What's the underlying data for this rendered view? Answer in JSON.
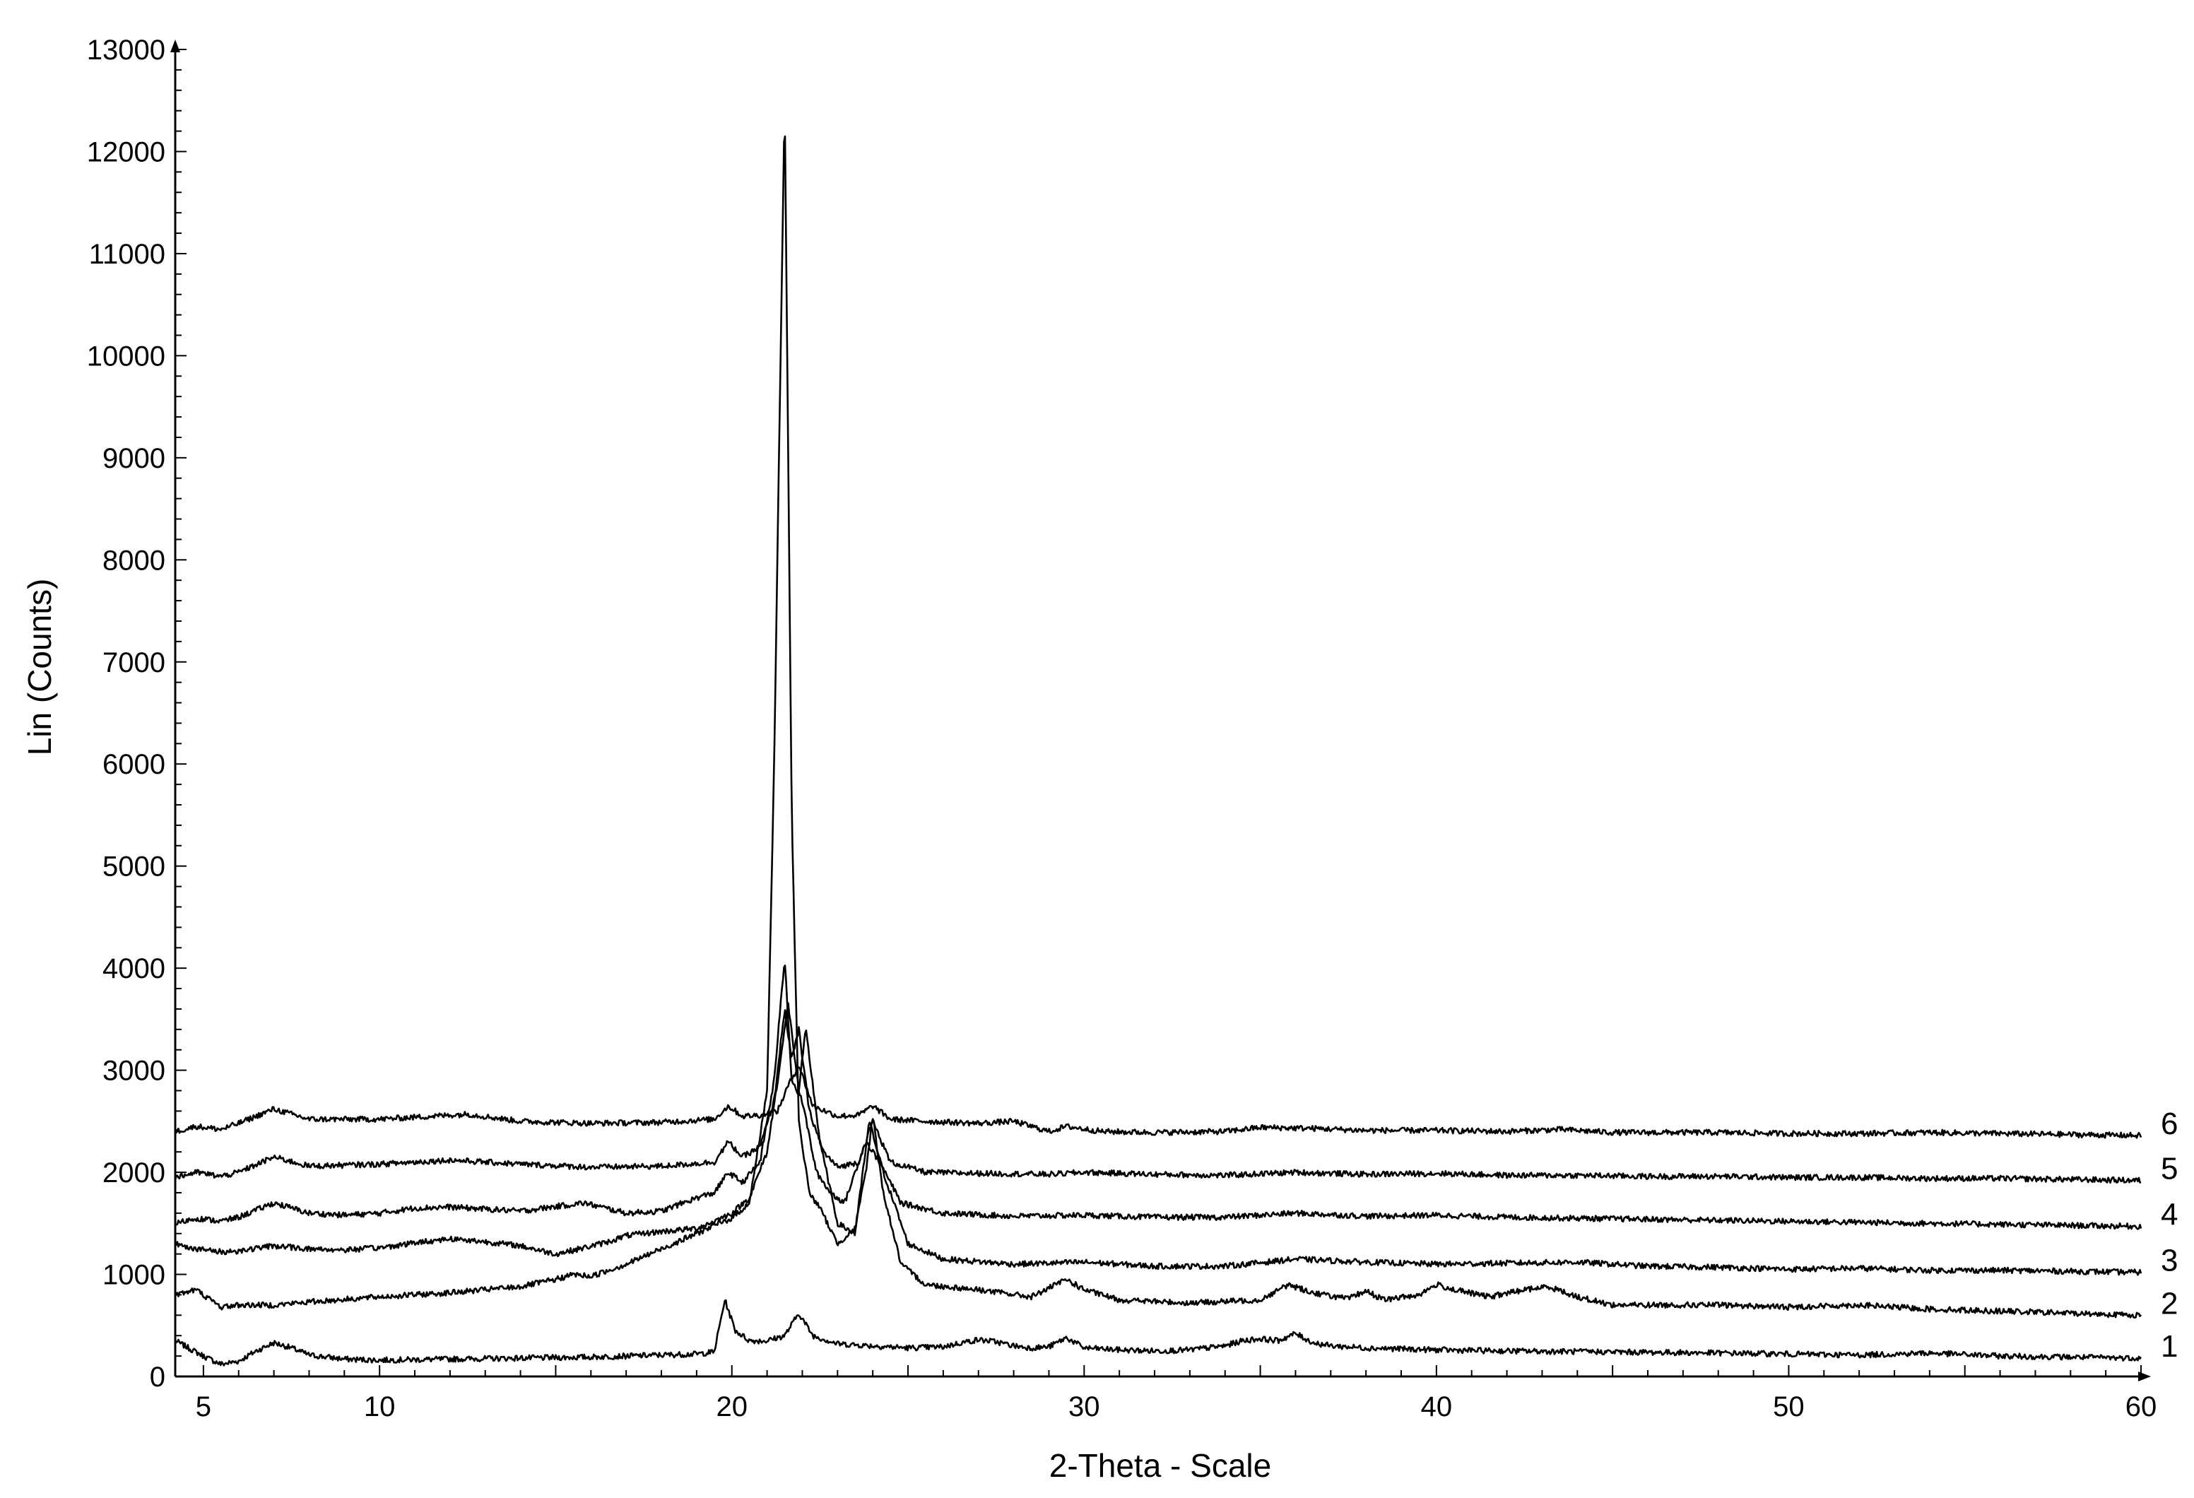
{
  "chart_data": {
    "type": "line",
    "xlabel": "2-Theta - Scale",
    "ylabel": "Lin (Counts)",
    "xlim": [
      4.2,
      60
    ],
    "ylim": [
      0,
      13000
    ],
    "x_ticks": [
      5,
      10,
      20,
      30,
      40,
      50,
      60
    ],
    "y_ticks": [
      0,
      1000,
      2000,
      3000,
      4000,
      5000,
      6000,
      7000,
      8000,
      9000,
      10000,
      11000,
      12000,
      13000
    ],
    "grid": false,
    "series": [
      {
        "name": "1",
        "x": [
          4.2,
          5.0,
          5.5,
          6.0,
          6.5,
          7.0,
          7.5,
          8.0,
          9.0,
          10.0,
          12.0,
          14.0,
          16.0,
          18.0,
          19.0,
          19.5,
          19.8,
          20.1,
          20.5,
          21.0,
          21.5,
          21.9,
          22.3,
          23.0,
          24.0,
          25.0,
          26.0,
          26.5,
          27.0,
          27.5,
          28.0,
          28.5,
          29.0,
          29.5,
          30.0,
          31.0,
          32.0,
          33.0,
          34.0,
          34.5,
          35.0,
          35.5,
          36.0,
          36.5,
          37.0,
          38.0,
          40.0,
          42.0,
          45.0,
          48.0,
          50.0,
          52.0,
          54.0,
          56.0,
          58.0,
          60.0
        ],
        "y": [
          350,
          200,
          120,
          150,
          250,
          330,
          280,
          210,
          170,
          160,
          170,
          180,
          190,
          210,
          220,
          240,
          750,
          450,
          350,
          350,
          400,
          620,
          400,
          320,
          300,
          280,
          290,
          330,
          360,
          340,
          300,
          280,
          290,
          380,
          280,
          260,
          250,
          260,
          300,
          350,
          370,
          350,
          420,
          330,
          300,
          280,
          260,
          250,
          240,
          230,
          220,
          210,
          230,
          200,
          190,
          180
        ]
      },
      {
        "name": "2",
        "x": [
          4.2,
          4.8,
          5.2,
          5.5,
          6.0,
          7.0,
          8.0,
          10.0,
          12.0,
          14.0,
          15.0,
          15.5,
          16.0,
          17.0,
          18.0,
          19.0,
          19.5,
          20.0,
          20.5,
          21.0,
          21.2,
          21.5,
          21.7,
          21.9,
          22.2,
          22.5,
          23.0,
          23.5,
          23.8,
          24.0,
          24.3,
          24.8,
          25.5,
          27.0,
          28.5,
          29.5,
          30.0,
          31.0,
          33.0,
          35.0,
          35.8,
          36.5,
          37.5,
          38.0,
          38.5,
          39.5,
          40.0,
          40.5,
          41.5,
          42.5,
          43.2,
          44.0,
          45.0,
          48.0,
          50.0,
          52.0,
          54.0,
          56.0,
          58.0,
          60.0
        ],
        "y": [
          800,
          850,
          750,
          680,
          700,
          700,
          730,
          780,
          820,
          880,
          950,
          1000,
          980,
          1100,
          1250,
          1400,
          1480,
          1550,
          1700,
          2800,
          6000,
          12500,
          5500,
          2500,
          1800,
          1650,
          1300,
          1450,
          2000,
          2550,
          1800,
          1100,
          900,
          850,
          780,
          950,
          850,
          750,
          720,
          750,
          900,
          820,
          760,
          840,
          750,
          800,
          900,
          850,
          780,
          850,
          880,
          780,
          700,
          700,
          680,
          700,
          660,
          640,
          620,
          600
        ]
      },
      {
        "name": "3",
        "x": [
          4.2,
          4.8,
          5.5,
          6.0,
          7.0,
          8.0,
          9.0,
          10.0,
          11.0,
          12.0,
          13.0,
          14.0,
          15.0,
          15.8,
          16.5,
          17.0,
          18.0,
          19.0,
          19.5,
          20.0,
          20.5,
          21.0,
          21.3,
          21.6,
          21.9,
          22.1,
          22.5,
          23.0,
          23.5,
          23.9,
          24.3,
          25.0,
          26.0,
          28.0,
          30.0,
          32.0,
          34.0,
          36.0,
          38.0,
          40.0,
          42.0,
          44.0,
          46.0,
          48.0,
          50.0,
          52.0,
          54.0,
          56.0,
          58.0,
          60.0
        ],
        "y": [
          1300,
          1250,
          1220,
          1230,
          1280,
          1250,
          1240,
          1260,
          1310,
          1350,
          1320,
          1280,
          1200,
          1260,
          1320,
          1380,
          1420,
          1450,
          1520,
          1600,
          1750,
          2200,
          2900,
          3650,
          2800,
          3400,
          2300,
          1500,
          1400,
          2500,
          2000,
          1300,
          1150,
          1100,
          1120,
          1080,
          1080,
          1150,
          1120,
          1100,
          1110,
          1120,
          1080,
          1070,
          1050,
          1060,
          1040,
          1040,
          1030,
          1020
        ]
      },
      {
        "name": "4",
        "x": [
          4.2,
          4.8,
          5.5,
          6.0,
          7.0,
          8.0,
          9.0,
          10.0,
          11.0,
          12.0,
          14.0,
          15.8,
          17.0,
          18.0,
          19.0,
          19.5,
          19.9,
          20.3,
          20.8,
          21.2,
          21.5,
          21.7,
          22.0,
          22.4,
          22.8,
          23.2,
          23.8,
          24.2,
          24.8,
          26.0,
          28.0,
          30.0,
          32.0,
          34.0,
          36.0,
          38.0,
          40.0,
          42.0,
          44.0,
          46.0,
          48.0,
          50.0,
          52.0,
          54.0,
          56.0,
          58.0,
          60.0
        ],
        "y": [
          1500,
          1550,
          1520,
          1560,
          1700,
          1600,
          1580,
          1600,
          1650,
          1660,
          1620,
          1700,
          1600,
          1620,
          1750,
          1800,
          2000,
          1900,
          2100,
          2900,
          4100,
          2900,
          2700,
          2000,
          1800,
          1700,
          2300,
          2100,
          1700,
          1600,
          1570,
          1580,
          1560,
          1560,
          1600,
          1570,
          1580,
          1560,
          1550,
          1540,
          1530,
          1520,
          1510,
          1500,
          1490,
          1480,
          1470
        ]
      },
      {
        "name": "5",
        "x": [
          4.2,
          4.8,
          5.5,
          6.0,
          7.0,
          8.0,
          10.0,
          12.0,
          14.0,
          16.0,
          18.0,
          19.5,
          19.9,
          20.3,
          20.8,
          21.2,
          21.5,
          21.7,
          21.9,
          22.2,
          22.6,
          23.0,
          23.6,
          24.0,
          24.5,
          25.5,
          27.0,
          29.0,
          30.0,
          32.0,
          34.0,
          36.0,
          38.0,
          40.0,
          42.0,
          44.0,
          46.0,
          48.0,
          50.0,
          52.0,
          54.0,
          56.0,
          58.0,
          60.0
        ],
        "y": [
          1950,
          2000,
          1960,
          2000,
          2150,
          2060,
          2080,
          2120,
          2080,
          2050,
          2060,
          2100,
          2300,
          2150,
          2250,
          2700,
          3600,
          3100,
          3400,
          2600,
          2200,
          2050,
          2100,
          2500,
          2100,
          2000,
          1990,
          1980,
          2000,
          1980,
          1970,
          2000,
          1980,
          1990,
          1970,
          1970,
          1960,
          1960,
          1950,
          1950,
          1940,
          1940,
          1930,
          1920
        ]
      },
      {
        "name": "6",
        "x": [
          4.2,
          4.8,
          5.5,
          6.0,
          7.0,
          8.0,
          10.0,
          12.5,
          14.0,
          16.0,
          18.0,
          19.5,
          19.9,
          20.3,
          20.8,
          21.3,
          21.6,
          21.9,
          22.3,
          23.0,
          23.6,
          24.0,
          24.5,
          25.5,
          27.0,
          28.0,
          29.0,
          29.5,
          30.5,
          32.0,
          34.0,
          35.0,
          36.5,
          38.0,
          40.0,
          42.0,
          43.5,
          45.0,
          48.0,
          50.0,
          52.0,
          54.0,
          56.0,
          58.0,
          60.0
        ],
        "y": [
          2400,
          2450,
          2420,
          2480,
          2620,
          2520,
          2520,
          2570,
          2500,
          2480,
          2490,
          2520,
          2650,
          2550,
          2560,
          2600,
          2850,
          3050,
          2650,
          2550,
          2560,
          2650,
          2520,
          2500,
          2480,
          2500,
          2400,
          2450,
          2400,
          2390,
          2400,
          2440,
          2430,
          2410,
          2410,
          2400,
          2420,
          2390,
          2390,
          2380,
          2380,
          2390,
          2380,
          2370,
          2360
        ]
      }
    ]
  }
}
